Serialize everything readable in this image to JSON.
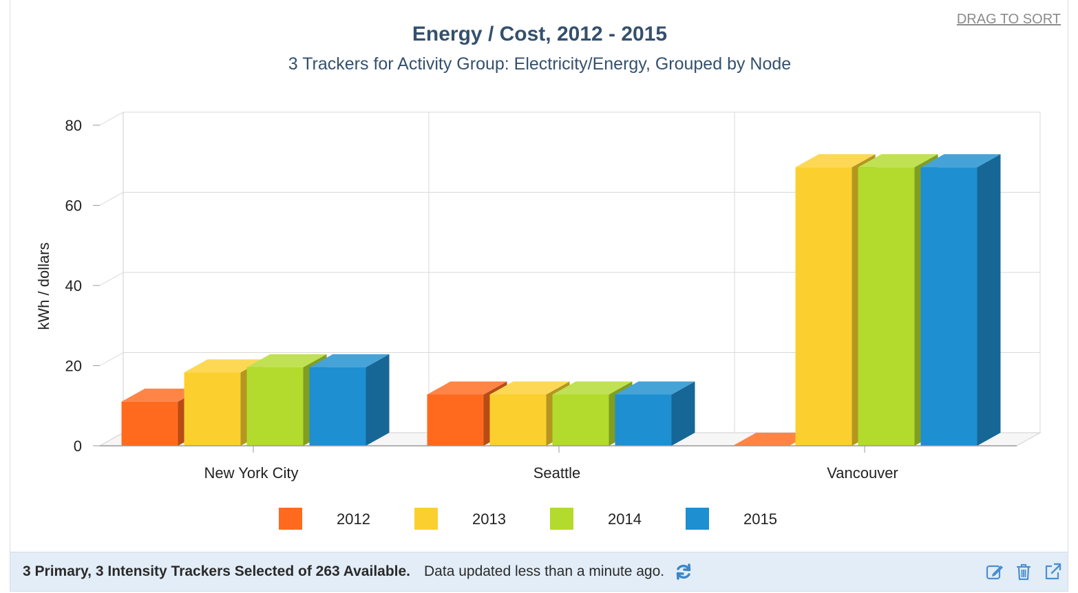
{
  "widget": {
    "drag_label": "DRAG TO SORT"
  },
  "chart_data": {
    "type": "bar",
    "title": "Energy / Cost, 2012 - 2015",
    "subtitle": "3 Trackers for Activity Group: Electricity/Energy, Grouped by Node",
    "ylabel": "kWh / dollars",
    "xlabel": "",
    "ylim": [
      0,
      80
    ],
    "yticks": [
      0,
      20,
      40,
      60,
      80
    ],
    "grid": true,
    "legend_position": "bottom",
    "style": "3d",
    "categories": [
      "New York City",
      "Seattle",
      "Vancouver"
    ],
    "series": [
      {
        "name": "2012",
        "color": "#ff6a1f",
        "values": [
          11,
          12.8,
          0
        ]
      },
      {
        "name": "2013",
        "color": "#fbd02e",
        "values": [
          18.3,
          12.8,
          69.5
        ]
      },
      {
        "name": "2014",
        "color": "#b2db2d",
        "values": [
          19.6,
          12.8,
          69.5
        ]
      },
      {
        "name": "2015",
        "color": "#1e8fd0",
        "values": [
          19.6,
          12.8,
          69.5
        ]
      }
    ]
  },
  "footer": {
    "summary": "3 Primary, 3 Intensity Trackers Selected of 263 Available.",
    "status": "Data updated less than a minute ago.",
    "icons": [
      "refresh-icon",
      "edit-icon",
      "trash-icon",
      "external-link-icon"
    ]
  }
}
